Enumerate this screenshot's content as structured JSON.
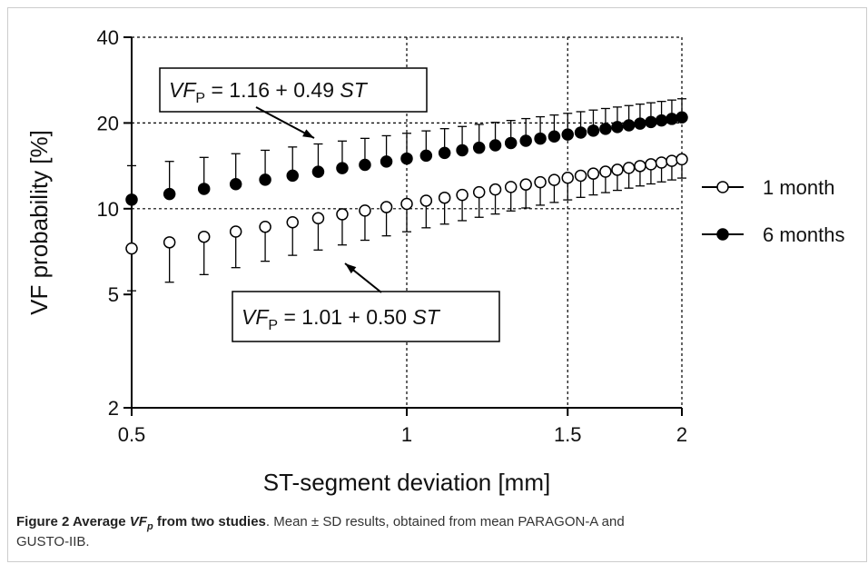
{
  "chart_data": {
    "type": "scatter",
    "xlabel": "ST-segment deviation [mm]",
    "ylabel": "VF probability [%]",
    "xlog": true,
    "ylog": true,
    "xlim": [
      0.5,
      2
    ],
    "ylim": [
      2,
      40
    ],
    "xticks": [
      0.5,
      1,
      1.5,
      2
    ],
    "yticks": [
      2,
      5,
      10,
      20,
      40
    ],
    "xgrid": [
      1,
      1.5,
      2
    ],
    "ygrid": [
      10,
      20,
      40
    ],
    "legend": "right",
    "x": [
      0.5,
      0.55,
      0.6,
      0.65,
      0.7,
      0.75,
      0.8,
      0.85,
      0.9,
      0.95,
      1,
      1.05,
      1.1,
      1.15,
      1.2,
      1.25,
      1.3,
      1.35,
      1.4,
      1.45,
      1.5,
      1.55,
      1.6,
      1.65,
      1.7,
      1.75,
      1.8,
      1.85,
      1.9,
      1.95,
      2
    ],
    "series": [
      {
        "name": "1 month",
        "color": "#ffffff",
        "error_side": "lower",
        "values": [
          7.25,
          7.62,
          7.97,
          8.31,
          8.64,
          8.96,
          9.26,
          9.56,
          9.85,
          10.13,
          10.4,
          10.67,
          10.93,
          11.18,
          11.43,
          11.68,
          11.92,
          12.16,
          12.39,
          12.62,
          12.84,
          13.06,
          13.28,
          13.49,
          13.7,
          13.91,
          14.12,
          14.32,
          14.52,
          14.72,
          14.91
        ],
        "errors": [
          2.1,
          2.1,
          2.1,
          2.1,
          2.1,
          2.1,
          2.1,
          2.1,
          2.1,
          2.1,
          2.1,
          2.1,
          2.1,
          2.1,
          2.1,
          2.1,
          2.1,
          2.1,
          2.1,
          2.1,
          2.1,
          2.1,
          2.1,
          2.1,
          2.1,
          2.1,
          2.1,
          2.1,
          2.1,
          2.1,
          2.1
        ]
      },
      {
        "name": "6 months",
        "color": "#000000",
        "error_side": "upper",
        "values": [
          10.76,
          11.26,
          11.74,
          12.2,
          12.64,
          13.07,
          13.48,
          13.88,
          14.26,
          14.64,
          15,
          15.36,
          15.7,
          16.04,
          16.37,
          16.7,
          17.01,
          17.32,
          17.63,
          17.93,
          18.22,
          18.51,
          18.8,
          19.08,
          19.35,
          19.62,
          19.89,
          20.15,
          20.41,
          20.67,
          20.92
        ],
        "errors": [
          3.4,
          3.4,
          3.4,
          3.4,
          3.4,
          3.4,
          3.4,
          3.4,
          3.4,
          3.4,
          3.4,
          3.4,
          3.4,
          3.4,
          3.4,
          3.4,
          3.4,
          3.4,
          3.4,
          3.4,
          3.4,
          3.4,
          3.4,
          3.4,
          3.4,
          3.4,
          3.4,
          3.4,
          3.4,
          3.4,
          3.4
        ]
      }
    ],
    "annotations": [
      {
        "parts": [
          "VF",
          "P",
          " = 1.16 + 0.49 ",
          "ST"
        ]
      },
      {
        "parts": [
          "VF",
          "P",
          " = 1.01 + 0.50 ",
          "ST"
        ]
      }
    ]
  },
  "caption": {
    "label": "Figure 2",
    "title_parts": [
      " Average ",
      "VF",
      "p",
      " from two studies"
    ],
    "text_1": ". Mean ± SD results, obtained from mean PARAGON-A and",
    "text_2": "GUSTO-IIB."
  }
}
